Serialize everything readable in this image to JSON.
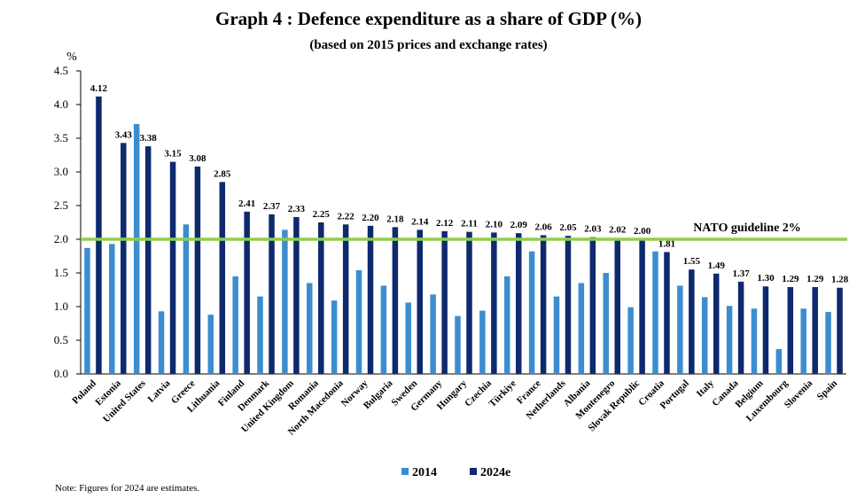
{
  "chart_data": {
    "type": "bar",
    "title": "Graph 4 : Defence expenditure as a share of GDP (%)",
    "subtitle": "(based on 2015 prices and exchange rates)",
    "ylabel": "%",
    "ylim": [
      0,
      4.5
    ],
    "yticks": [
      "0.0",
      "0.5",
      "1.0",
      "1.5",
      "2.0",
      "2.5",
      "3.0",
      "3.5",
      "4.0",
      "4.5"
    ],
    "categories": [
      "Poland",
      "Estonia",
      "United States",
      "Latvia",
      "Greece",
      "Lithuania",
      "Finland",
      "Denmark",
      "United Kingdom",
      "Romania",
      "North Macedonia",
      "Norway",
      "Bulgaria",
      "Sweden",
      "Germany",
      "Hungary",
      "Czechia",
      "Türkiye",
      "France",
      "Netherlands",
      "Albania",
      "Montenegro",
      "Slovak Republic",
      "Croatia",
      "Portugal",
      "Italy",
      "Canada",
      "Belgium",
      "Luxembourg",
      "Slovenia",
      "Spain"
    ],
    "series": [
      {
        "name": "2014",
        "color": "#3c8dcf",
        "values": [
          1.87,
          1.93,
          3.71,
          0.93,
          2.22,
          0.88,
          1.45,
          1.15,
          2.14,
          1.35,
          1.09,
          1.54,
          1.31,
          1.06,
          1.18,
          0.86,
          0.94,
          1.45,
          1.82,
          1.15,
          1.35,
          1.5,
          0.99,
          1.82,
          1.31,
          1.14,
          1.01,
          0.97,
          0.37,
          0.97,
          0.92
        ]
      },
      {
        "name": "2024e",
        "color": "#0e2a6e",
        "values": [
          4.12,
          3.43,
          3.38,
          3.15,
          3.08,
          2.85,
          2.41,
          2.37,
          2.33,
          2.25,
          2.22,
          2.2,
          2.18,
          2.14,
          2.12,
          2.11,
          2.1,
          2.09,
          2.06,
          2.05,
          2.03,
          2.02,
          2.0,
          1.81,
          1.55,
          1.49,
          1.37,
          1.3,
          1.29,
          1.29,
          1.28
        ]
      }
    ],
    "data_labels_2024e": [
      "4.12",
      "3.43",
      "3.38",
      "3.15",
      "3.08",
      "2.85",
      "2.41",
      "2.37",
      "2.33",
      "2.25",
      "2.22",
      "2.20",
      "2.18",
      "2.14",
      "2.12",
      "2.11",
      "2.10",
      "2.09",
      "2.06",
      "2.05",
      "2.03",
      "2.02",
      "2.00",
      "1.81",
      "1.55",
      "1.49",
      "1.37",
      "1.30",
      "1.29",
      "1.29",
      "1.28"
    ],
    "reference_line": {
      "label": "NATO guideline 2%",
      "value": 2.0,
      "color": "#8fce4a"
    },
    "legend_placement": "bottom-center",
    "grid": false
  },
  "note": "Note: Figures for 2024 are estimates."
}
